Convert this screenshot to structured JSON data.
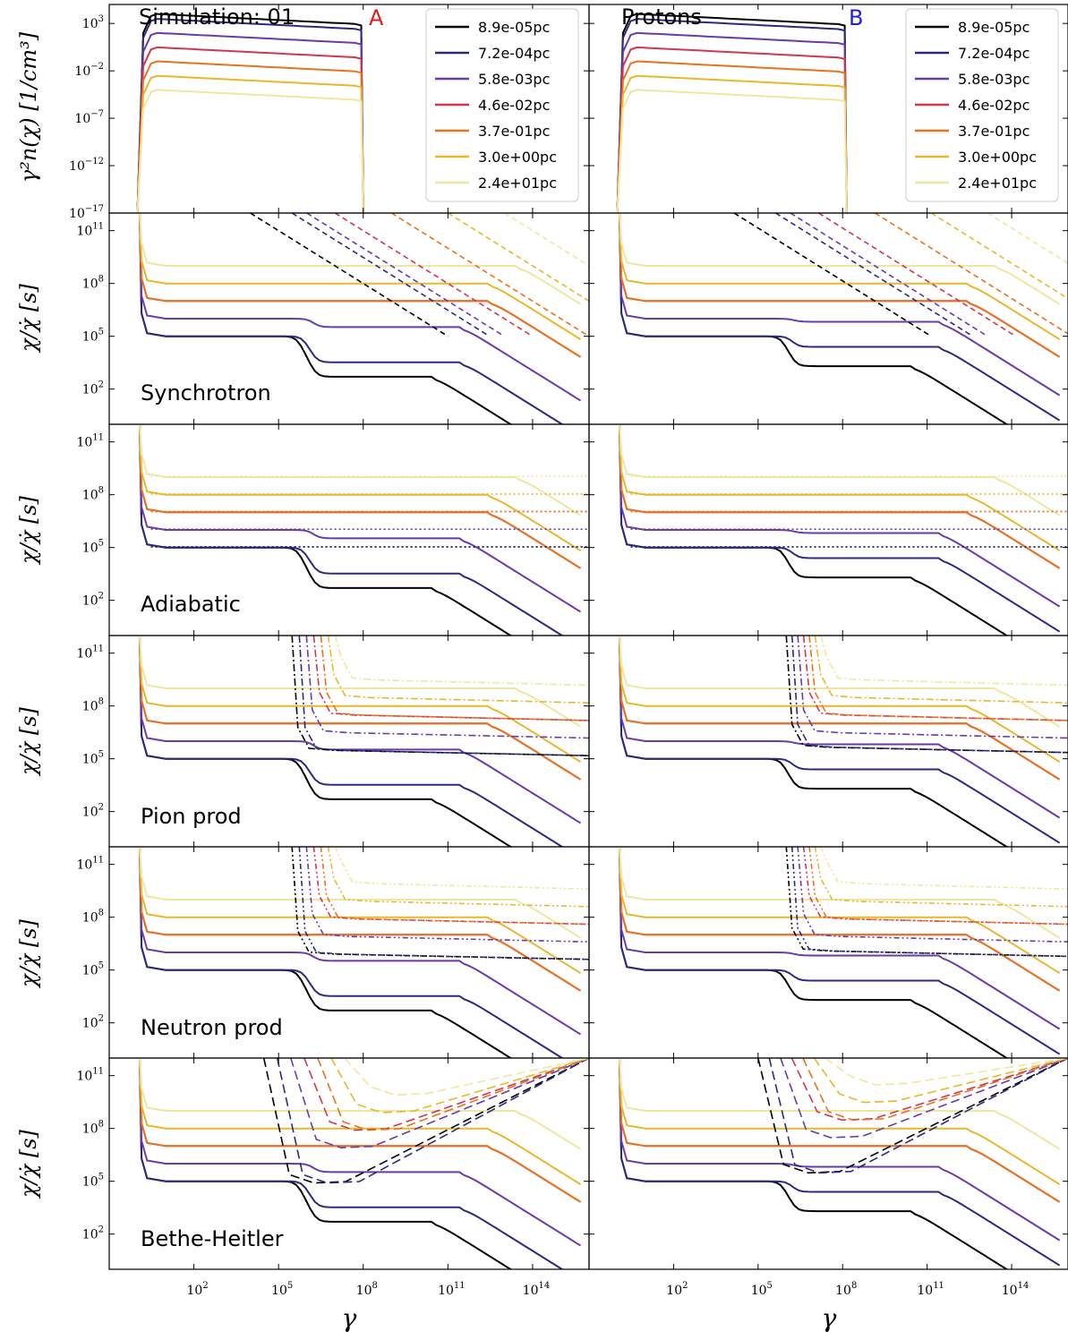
{
  "figure": {
    "xlabel": "γ",
    "row_ylabels": [
      "γ²n(χ) [1/cm³]",
      "χ/χ̇ [s]",
      "χ/χ̇ [s]",
      "χ/χ̇ [s]",
      "χ/χ̇ [s]",
      "χ/χ̇ [s]"
    ],
    "column_titles": [
      {
        "text": "Simulation: 01",
        "letter": "A",
        "letter_color": "#e31a1c"
      },
      {
        "text": "Protons",
        "letter": "B",
        "letter_color": "#1f1fd8"
      }
    ],
    "row_labels": [
      "",
      "Synchrotron",
      "Adiabatic",
      "Pion prod",
      "Neutron prod",
      "Bethe-Heitler"
    ],
    "legend": [
      {
        "label": "8.9e-05pc",
        "color": "#000000"
      },
      {
        "label": "7.2e-04pc",
        "color": "#2c2a7e"
      },
      {
        "label": "5.8e-03pc",
        "color": "#6a3aa8"
      },
      {
        "label": "4.6e-02pc",
        "color": "#d2364e"
      },
      {
        "label": "3.7e-01pc",
        "color": "#e8731f"
      },
      {
        "label": "3.0e+00pc",
        "color": "#e8b72c"
      },
      {
        "label": "2.4e+01pc",
        "color": "#f0e6a0"
      }
    ]
  },
  "chart_data": {
    "type": "line",
    "xscale": "log",
    "yscale": "log",
    "xlim": [
      0.1,
      1e+16
    ],
    "x_ticks": [
      {
        "value": 100,
        "base": "10",
        "exp": "2"
      },
      {
        "value": 100000,
        "base": "10",
        "exp": "5"
      },
      {
        "value": 100000000,
        "base": "10",
        "exp": "8"
      },
      {
        "value": 100000000000,
        "base": "10",
        "exp": "11"
      },
      {
        "value": 100000000000000,
        "base": "10",
        "exp": "14"
      }
    ],
    "density_ylim": [
      1e-17,
      100000.0
    ],
    "density_y_ticks": [
      {
        "value": 1000.0,
        "base": "10",
        "exp": "3"
      },
      {
        "value": 0.01,
        "base": "10",
        "exp": "−2"
      },
      {
        "value": 1e-07,
        "base": "10",
        "exp": "−7"
      },
      {
        "value": 1e-12,
        "base": "10",
        "exp": "−12"
      },
      {
        "value": 1e-17,
        "base": "10",
        "exp": "−17"
      }
    ],
    "timescale_ylim": [
      1.0,
      1000000000000.0
    ],
    "timescale_y_ticks": [
      {
        "value": 100000000000.0,
        "base": "10",
        "exp": "11"
      },
      {
        "value": 100000000.0,
        "base": "10",
        "exp": "8"
      },
      {
        "value": 100000.0,
        "base": "10",
        "exp": "5"
      },
      {
        "value": 100.0,
        "base": "10",
        "exp": "2"
      }
    ],
    "density_series": [
      {
        "name": "8.9e-05pc",
        "start": 1,
        "peak_x": 5,
        "peak": 10000.0,
        "slope": -0.15,
        "cutoff": 100000000.0
      },
      {
        "name": "7.2e-04pc",
        "start": 1,
        "peak_x": 5,
        "peak": 3000.0,
        "slope": -0.15,
        "cutoff": 100000000.0
      },
      {
        "name": "5.8e-03pc",
        "start": 1,
        "peak_x": 5,
        "peak": 100.0,
        "slope": -0.15,
        "cutoff": 100000000.0
      },
      {
        "name": "4.6e-02pc",
        "start": 1,
        "peak_x": 5,
        "peak": 3,
        "slope": -0.15,
        "cutoff": 100000000.0
      },
      {
        "name": "3.7e-01pc",
        "start": 1,
        "peak_x": 5,
        "peak": 0.1,
        "slope": -0.15,
        "cutoff": 100000000.0
      },
      {
        "name": "3.0e+00pc",
        "start": 1,
        "peak_x": 5,
        "peak": 0.003,
        "slope": -0.15,
        "cutoff": 100000000.0
      },
      {
        "name": "2.4e+01pc",
        "start": 1,
        "peak_x": 5,
        "peak": 0.0001,
        "slope": -0.15,
        "cutoff": 100000000.0
      }
    ],
    "timescale_series": [
      {
        "name": "8.9e-05pc",
        "plateau": 100000.0,
        "break": 1000000000000.0
      },
      {
        "name": "7.2e-04pc",
        "plateau": 100000.0,
        "break": 10000000000000.0
      },
      {
        "name": "5.8e-03pc",
        "plateau": 1000000.0,
        "break": 10000000000000.0
      },
      {
        "name": "4.6e-02pc",
        "plateau": 10000000.0,
        "break": 100000000000000.0
      },
      {
        "name": "3.7e-01pc",
        "plateau": 10000000.0,
        "break": 100000000000000.0
      },
      {
        "name": "3.0e+00pc",
        "plateau": 100000000.0,
        "break": 100000000000000.0
      },
      {
        "name": "2.4e+01pc",
        "plateau": 1000000000.0,
        "break": 1000000000000000.0
      }
    ],
    "sync_dashed": [
      {
        "name": "8.9e-05pc",
        "anchor_x": 10000.0,
        "anchor_y": 1000000000000.0
      },
      {
        "name": "7.2e-04pc",
        "anchor_x": 300000.0,
        "anchor_y": 1000000000000.0
      },
      {
        "name": "5.8e-03pc",
        "anchor_x": 1000000.0,
        "anchor_y": 1000000000000.0
      },
      {
        "name": "4.6e-02pc",
        "anchor_x": 10000000.0,
        "anchor_y": 1000000000000.0
      },
      {
        "name": "3.7e-01pc",
        "anchor_x": 1000000000.0,
        "anchor_y": 1000000000000.0
      },
      {
        "name": "3.0e+00pc",
        "anchor_x": 100000000000.0,
        "anchor_y": 1000000000000.0
      },
      {
        "name": "2.4e+01pc",
        "anchor_x": 10000000000000.0,
        "anchor_y": 1000000000000.0
      }
    ]
  }
}
